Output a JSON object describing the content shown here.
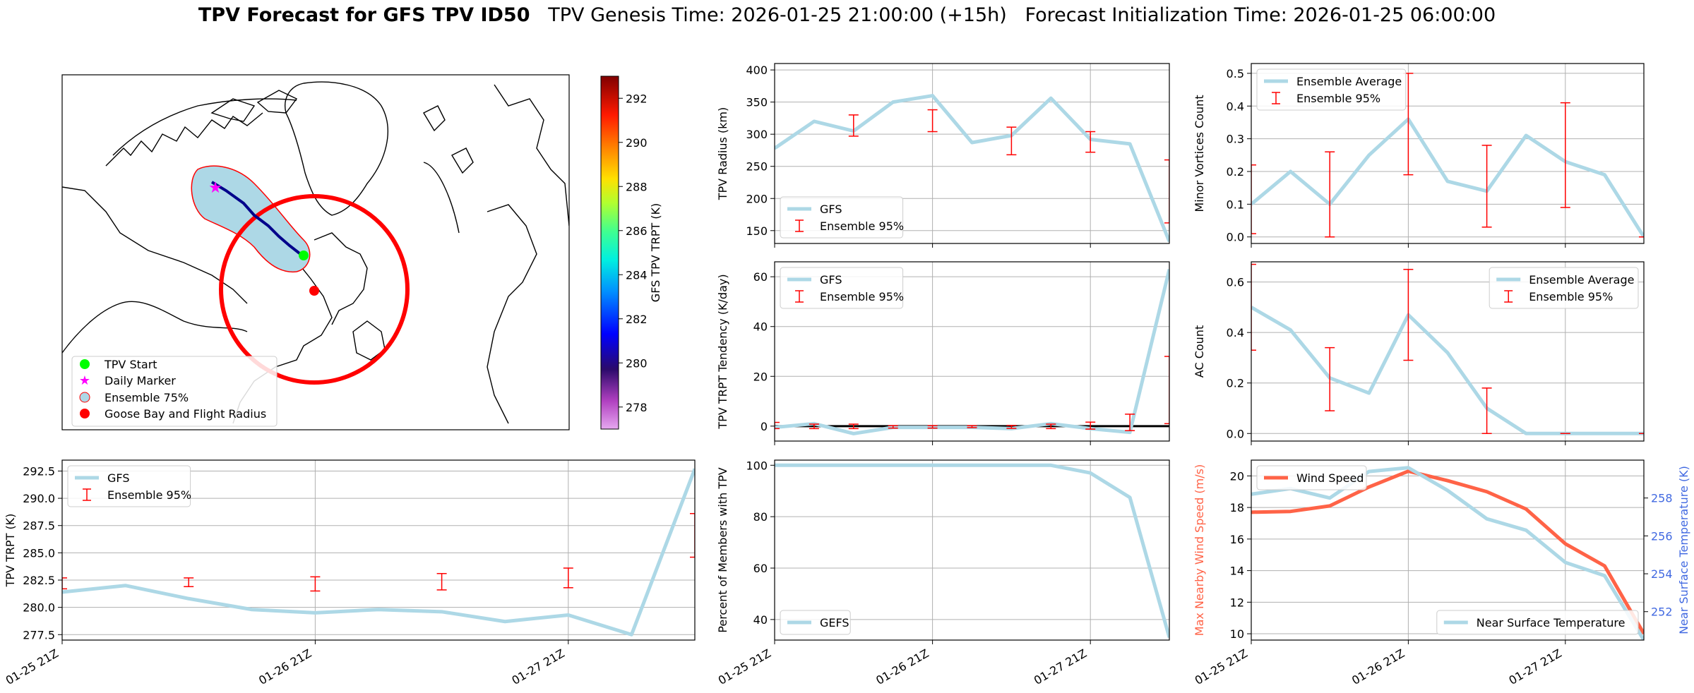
{
  "title": {
    "bold": "TPV Forecast for GFS TPV ID50",
    "genesis": "TPV Genesis Time: 2026-01-25 21:00:00 (+15h)",
    "init": "Forecast Initialization Time: 2026-01-25 06:00:00"
  },
  "colors": {
    "gfs_line": "#add8e6",
    "error_bar": "#ff0000",
    "wind": "#ff6347",
    "temp_axis": "#4169e1",
    "grid": "#b0b0b0"
  },
  "map": {
    "colorbar_label": "GFS TPV TRPT (K)",
    "colorbar_ticks": [
      292,
      290,
      288,
      286,
      284,
      282,
      280,
      278
    ],
    "colorbar_range": [
      277,
      293
    ],
    "legend": [
      "TPV Start",
      "Daily Marker",
      "Ensemble 75%",
      "Goose Bay and Flight Radius"
    ]
  },
  "chart_data": [
    {
      "id": "trpt",
      "type": "line",
      "ylabel": "TPV TRPT (K)",
      "ylim": [
        277,
        293.5
      ],
      "yticks": [
        292.5,
        290.0,
        287.5,
        285.0,
        282.5,
        280.0,
        277.5
      ],
      "xlim": [
        0,
        10
      ],
      "xticks": [
        0,
        4,
        8
      ],
      "xticklabels": [
        "01-25 21Z",
        "01-26 21Z",
        "01-27 21Z"
      ],
      "legend": [
        "GFS",
        "Ensemble 95%"
      ],
      "legend_loc": "upper-left",
      "series": [
        {
          "name": "GFS",
          "x": [
            0,
            1,
            2,
            3,
            4,
            5,
            6,
            7,
            8,
            9,
            10
          ],
          "y": [
            281.4,
            282.0,
            280.8,
            279.8,
            279.5,
            279.8,
            279.6,
            278.7,
            279.3,
            277.5,
            292.7
          ]
        }
      ],
      "errorbars": [
        {
          "x": 0,
          "low": 281.7,
          "high": 282.7
        },
        {
          "x": 2,
          "low": 281.9,
          "high": 282.7
        },
        {
          "x": 4,
          "low": 281.5,
          "high": 282.8
        },
        {
          "x": 6,
          "low": 281.6,
          "high": 283.1
        },
        {
          "x": 8,
          "low": 281.8,
          "high": 283.6
        },
        {
          "x": 10,
          "low": 284.6,
          "high": 288.6
        }
      ]
    },
    {
      "id": "radius",
      "type": "line",
      "ylabel": "TPV Radius (km)",
      "ylim": [
        130,
        410
      ],
      "yticks": [
        400,
        350,
        300,
        250,
        200,
        150
      ],
      "xlim": [
        0,
        10
      ],
      "xticks": [
        0,
        4,
        8
      ],
      "xticklabels": [],
      "legend": [
        "GFS",
        "Ensemble 95%"
      ],
      "legend_loc": "lower-left",
      "series": [
        {
          "name": "GFS",
          "x": [
            0,
            1,
            2,
            3,
            4,
            5,
            6,
            7,
            8,
            9,
            10
          ],
          "y": [
            278,
            320,
            305,
            350,
            360,
            287,
            298,
            356,
            292,
            285,
            133
          ]
        }
      ],
      "errorbars": [
        {
          "x": 2,
          "low": 297,
          "high": 330
        },
        {
          "x": 4,
          "low": 304,
          "high": 338
        },
        {
          "x": 6,
          "low": 268,
          "high": 311
        },
        {
          "x": 8,
          "low": 272,
          "high": 304
        },
        {
          "x": 10,
          "low": 162,
          "high": 260
        }
      ]
    },
    {
      "id": "tendency",
      "type": "line",
      "ylabel": "TPV TRPT Tendency (K/day)",
      "ylim": [
        -6,
        66
      ],
      "yticks": [
        60,
        40,
        20,
        0
      ],
      "xlim": [
        0,
        10
      ],
      "xticks": [
        0,
        4,
        8
      ],
      "xticklabels": [],
      "legend": [
        "GFS",
        "Ensemble 95%"
      ],
      "legend_loc": "upper-left",
      "zero_line": true,
      "series": [
        {
          "name": "GFS",
          "x": [
            0,
            1,
            2,
            3,
            4,
            5,
            6,
            7,
            8,
            9,
            10
          ],
          "y": [
            -0.5,
            1.0,
            -3.0,
            -0.5,
            -0.5,
            -0.5,
            -1.0,
            1.0,
            -1.0,
            -2.5,
            63
          ]
        }
      ],
      "errorbars": [
        {
          "x": 0,
          "low": -1.0,
          "high": 1.5
        },
        {
          "x": 1,
          "low": -1.0,
          "high": 0.8
        },
        {
          "x": 2,
          "low": -1.0,
          "high": 0.8
        },
        {
          "x": 3,
          "low": -0.8,
          "high": 0.2
        },
        {
          "x": 4,
          "low": -0.8,
          "high": 0.2
        },
        {
          "x": 5,
          "low": -0.6,
          "high": 0.2
        },
        {
          "x": 6,
          "low": -0.9,
          "high": 0.3
        },
        {
          "x": 7,
          "low": -1.0,
          "high": 0.8
        },
        {
          "x": 8,
          "low": -1.2,
          "high": 1.6
        },
        {
          "x": 9,
          "low": -1.8,
          "high": 4.8
        },
        {
          "x": 10,
          "low": 1.0,
          "high": 28
        }
      ]
    },
    {
      "id": "members",
      "type": "line",
      "ylabel": "Percent of Members with TPV",
      "ylim": [
        32,
        102
      ],
      "yticks": [
        100,
        80,
        60,
        40
      ],
      "xlim": [
        0,
        10
      ],
      "xticks": [
        0,
        4,
        8
      ],
      "xticklabels": [
        "01-25 21Z",
        "01-26 21Z",
        "01-27 21Z"
      ],
      "legend": [
        "GEFS"
      ],
      "legend_loc": "lower-left",
      "series": [
        {
          "name": "GEFS",
          "x": [
            0,
            1,
            2,
            3,
            4,
            5,
            6,
            7,
            8,
            9,
            10
          ],
          "y": [
            100,
            100,
            100,
            100,
            100,
            100,
            100,
            100,
            97,
            87.5,
            33
          ]
        }
      ],
      "errorbars": []
    },
    {
      "id": "minor",
      "type": "line",
      "ylabel": "Minor Vortices Count",
      "ylim": [
        -0.02,
        0.53
      ],
      "yticks": [
        0.5,
        0.4,
        0.3,
        0.2,
        0.1,
        0.0
      ],
      "xlim": [
        0,
        10
      ],
      "xticks": [
        0,
        4,
        8
      ],
      "xticklabels": [],
      "legend": [
        "Ensemble Average",
        "Ensemble 95%"
      ],
      "legend_loc": "upper-left",
      "series": [
        {
          "name": "Ensemble Average",
          "x": [
            0,
            1,
            2,
            3,
            4,
            5,
            6,
            7,
            8,
            9,
            10
          ],
          "y": [
            0.1,
            0.2,
            0.1,
            0.25,
            0.36,
            0.17,
            0.14,
            0.31,
            0.23,
            0.19,
            0.0
          ]
        }
      ],
      "errorbars": [
        {
          "x": 0,
          "low": 0.01,
          "high": 0.22
        },
        {
          "x": 2,
          "low": 0.0,
          "high": 0.26
        },
        {
          "x": 4,
          "low": 0.19,
          "high": 0.5
        },
        {
          "x": 6,
          "low": 0.03,
          "high": 0.28
        },
        {
          "x": 8,
          "low": 0.09,
          "high": 0.41
        },
        {
          "x": 10,
          "low": 0.0,
          "high": 0.0
        }
      ]
    },
    {
      "id": "ac",
      "type": "line",
      "ylabel": "AC Count",
      "ylim": [
        -0.03,
        0.68
      ],
      "yticks": [
        0.6,
        0.4,
        0.2,
        0.0
      ],
      "xlim": [
        0,
        10
      ],
      "xticks": [
        0,
        4,
        8
      ],
      "xticklabels": [],
      "legend": [
        "Ensemble Average",
        "Ensemble 95%"
      ],
      "legend_loc": "upper-right",
      "series": [
        {
          "name": "Ensemble Average",
          "x": [
            0,
            1,
            2,
            3,
            4,
            5,
            6,
            7,
            8,
            9,
            10
          ],
          "y": [
            0.5,
            0.41,
            0.22,
            0.16,
            0.47,
            0.32,
            0.1,
            0.0,
            0.0,
            0.0,
            0.0
          ]
        }
      ],
      "errorbars": [
        {
          "x": 0,
          "low": 0.33,
          "high": 0.67
        },
        {
          "x": 2,
          "low": 0.09,
          "high": 0.34
        },
        {
          "x": 4,
          "low": 0.29,
          "high": 0.65
        },
        {
          "x": 6,
          "low": 0.0,
          "high": 0.18
        },
        {
          "x": 8,
          "low": 0.0,
          "high": 0.0
        },
        {
          "x": 10,
          "low": 0.0,
          "high": 0.0
        }
      ]
    },
    {
      "id": "wind_temp",
      "type": "line",
      "ylabel": "Max Nearby Wind Speed (m/s)",
      "ylabel_right": "Near Surface Temperature (K)",
      "ylim": [
        9.6,
        21
      ],
      "yticks": [
        20,
        18,
        16,
        14,
        12,
        10
      ],
      "ylim_right": [
        250.5,
        260.0
      ],
      "yticks_right": [
        258,
        256,
        254,
        252
      ],
      "xlim": [
        0,
        10
      ],
      "xticks": [
        0,
        4,
        8
      ],
      "xticklabels": [
        "01-25 21Z",
        "01-26 21Z",
        "01-27 21Z"
      ],
      "legend": [
        "Wind Speed"
      ],
      "legend_right": [
        "Near Surface Temperature"
      ],
      "legend_loc": "upper-left",
      "series": [
        {
          "name": "Wind Speed",
          "axis": "left",
          "x": [
            0,
            1,
            2,
            3,
            4,
            5,
            6,
            7,
            8,
            9,
            10
          ],
          "y": [
            17.7,
            17.75,
            18.1,
            19.3,
            20.3,
            19.7,
            19.0,
            17.9,
            15.7,
            14.3,
            10.0
          ]
        },
        {
          "name": "Near Surface Temperature",
          "axis": "right",
          "x": [
            0,
            1,
            2,
            3,
            4,
            5,
            6,
            7,
            8,
            9,
            10
          ],
          "y": [
            258.2,
            258.5,
            258.0,
            259.4,
            259.6,
            258.4,
            256.9,
            256.3,
            254.6,
            253.9,
            250.5
          ]
        }
      ],
      "errorbars": []
    }
  ]
}
